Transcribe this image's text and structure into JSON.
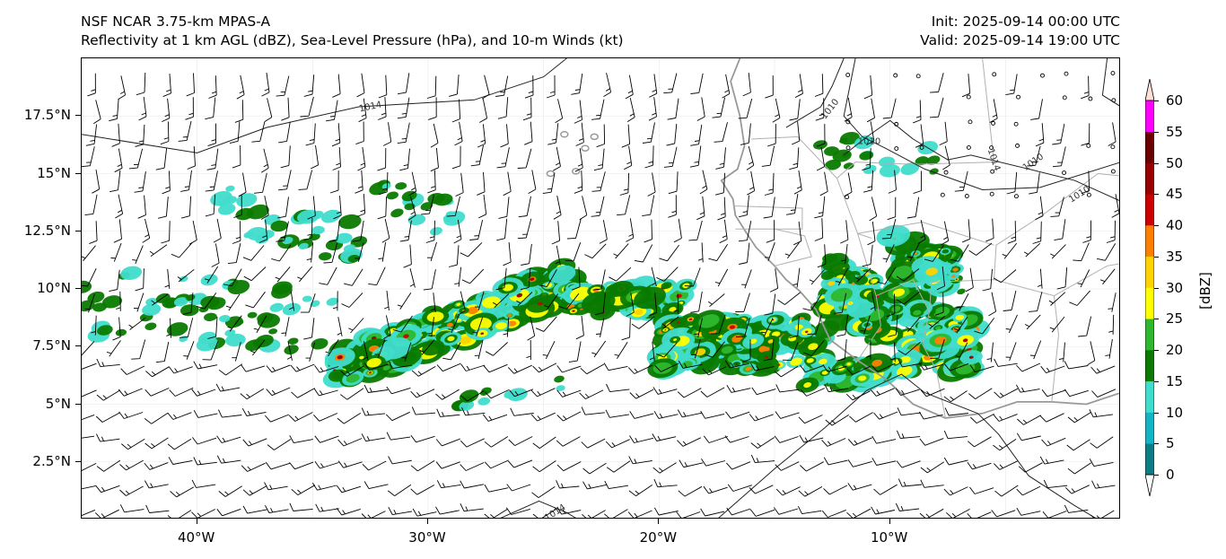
{
  "header": {
    "title_line1": "NSF NCAR 3.75-km MPAS-A",
    "title_line2": "Reflectivity at 1 km AGL (dBZ), Sea-Level Pressure (hPa), and 10-m Winds (kt)",
    "init": "Init: 2025-09-14 00:00 UTC",
    "valid": "Valid: 2025-09-14 19:00 UTC"
  },
  "map": {
    "lon_range": [
      -45,
      0
    ],
    "lat_range": [
      0,
      20
    ],
    "lat_ticks": [
      "17.5°N",
      "15°N",
      "12.5°N",
      "10°N",
      "7.5°N",
      "5°N",
      "2.5°N"
    ],
    "lat_tick_values": [
      17.5,
      15,
      12.5,
      10,
      7.5,
      5,
      2.5
    ],
    "lon_ticks": [
      "40°W",
      "30°W",
      "20°W",
      "10°W"
    ],
    "lon_tick_values": [
      -40,
      -30,
      -20,
      -10
    ],
    "isobar_labels": [
      "1014",
      "1010",
      "1010",
      "1010",
      "1010",
      "1014",
      "1014"
    ],
    "colors": {
      "isobar": "#222222",
      "coastline": "#999999",
      "barb": "#000000"
    }
  },
  "colorbar": {
    "unit": "[dBZ]",
    "ticks": [
      "0",
      "5",
      "10",
      "15",
      "20",
      "25",
      "30",
      "35",
      "40",
      "45",
      "50",
      "55",
      "60"
    ],
    "colors": [
      "#0b7e85",
      "#14b4c7",
      "#40dccc",
      "#0a7a00",
      "#2eb82e",
      "#ffff00",
      "#ffd200",
      "#ff8000",
      "#cc0000",
      "#990000",
      "#6b0000",
      "#ff00ff",
      "#ffe0d6"
    ]
  }
}
